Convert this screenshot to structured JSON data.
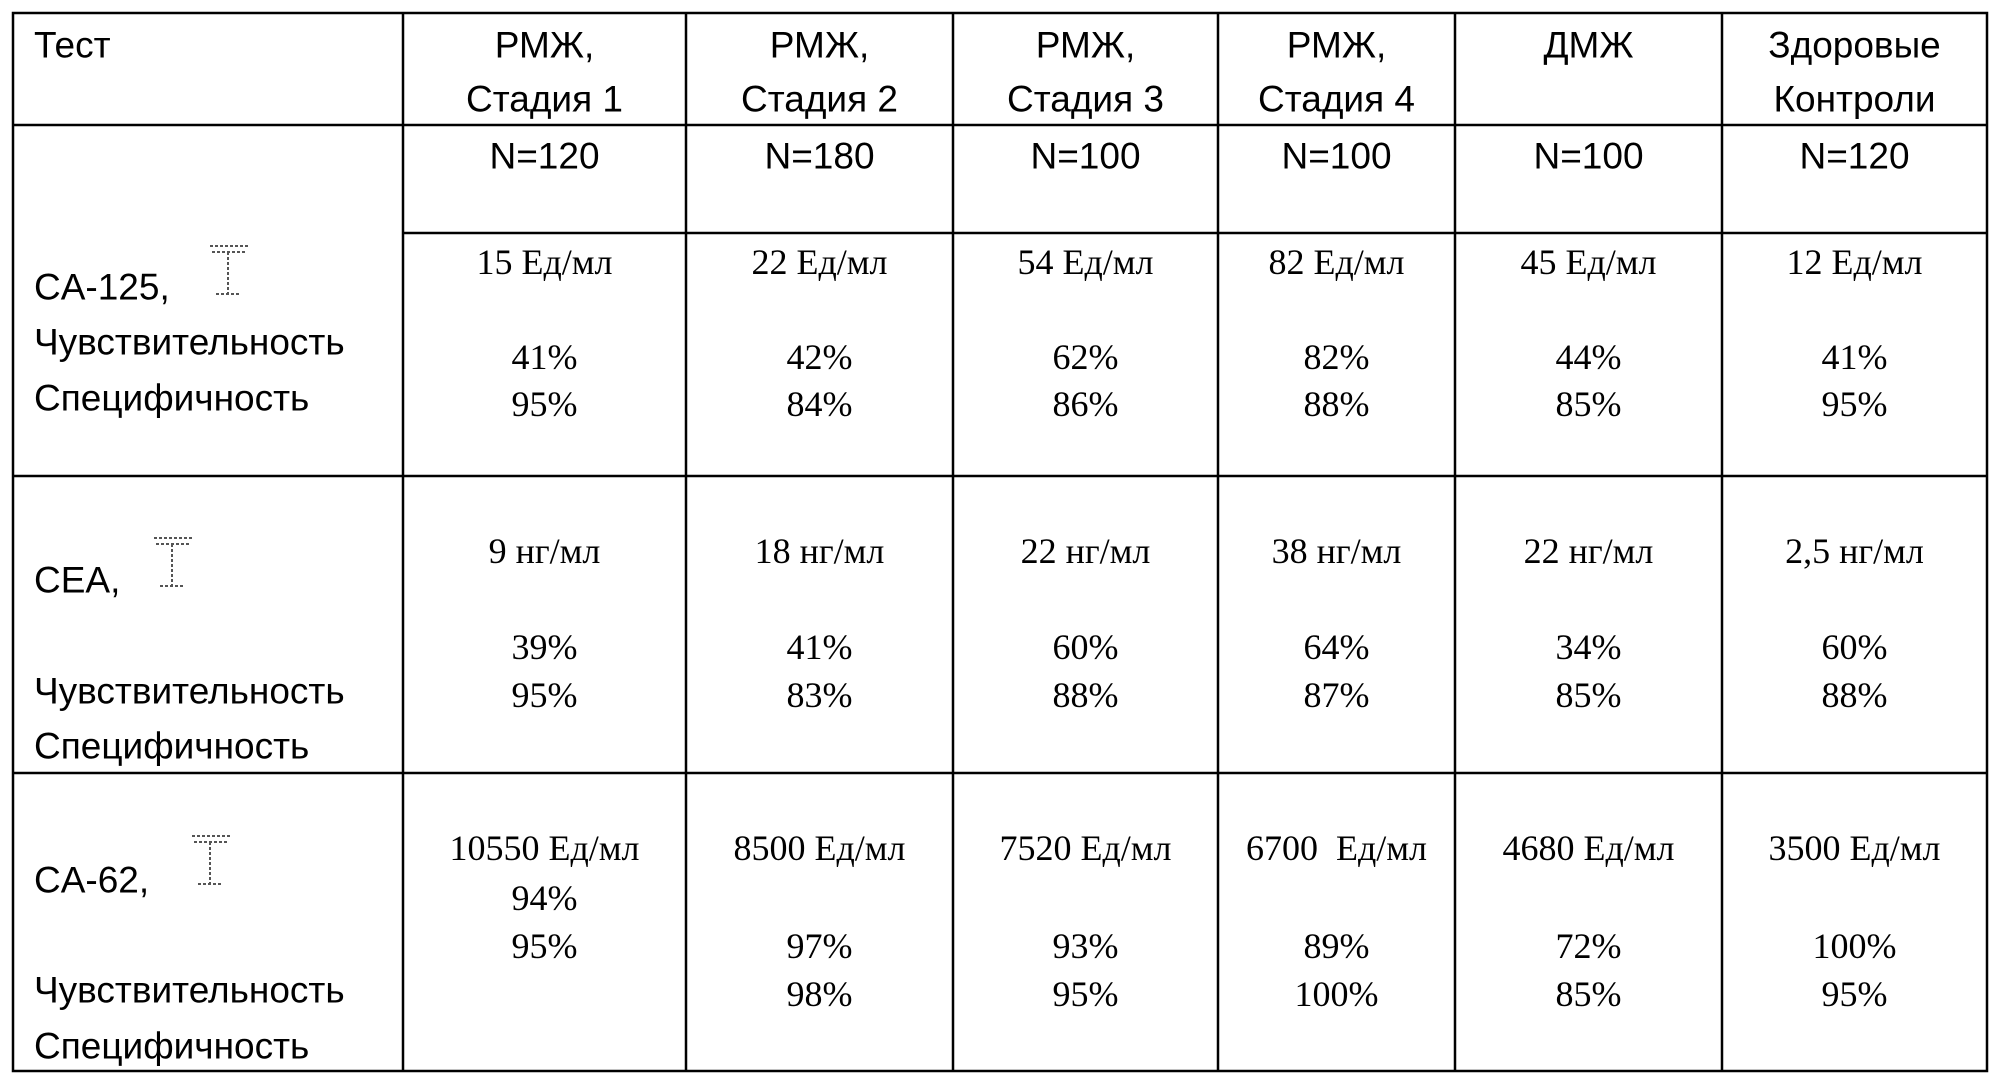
{
  "table": {
    "header": [
      [
        "Тест"
      ],
      [
        "РМЖ,",
        "Стадия 1"
      ],
      [
        "РМЖ,",
        "Стадия 2"
      ],
      [
        "РМЖ,",
        "Стадия 3"
      ],
      [
        "РМЖ,",
        "Стадия 4"
      ],
      [
        "ДМЖ"
      ],
      [
        "Здоровые",
        "Контроли"
      ]
    ],
    "n_row": [
      "N=120",
      "N=180",
      "N=100",
      "N=100",
      "N=100",
      "N=120"
    ],
    "rows": [
      {
        "test": "CA-125,",
        "sensitivity_label": "Чувствительность",
        "specificity_label": "Специфичность",
        "cells": [
          {
            "value": "15 Ед/мл",
            "sensitivity": "41%",
            "specificity": "95%"
          },
          {
            "value": "22 Ед/мл",
            "sensitivity": "42%",
            "specificity": "84%"
          },
          {
            "value": "54 Ед/мл",
            "sensitivity": "62%",
            "specificity": "86%"
          },
          {
            "value": "82 Ед/мл",
            "sensitivity": "82%",
            "specificity": "88%"
          },
          {
            "value": "45 Ед/мл",
            "sensitivity": "44%",
            "specificity": "85%"
          },
          {
            "value": "12 Ед/мл",
            "sensitivity": "41%",
            "specificity": "95%"
          }
        ]
      },
      {
        "test": "CEA,",
        "sensitivity_label": "Чувствительность",
        "specificity_label": "Специфичность",
        "cells": [
          {
            "value": "9 нг/мл",
            "sensitivity": "39%",
            "specificity": "95%"
          },
          {
            "value": "18 нг/мл",
            "sensitivity": "41%",
            "specificity": "83%"
          },
          {
            "value": "22 нг/мл",
            "sensitivity": "60%",
            "specificity": "88%"
          },
          {
            "value": "38 нг/мл",
            "sensitivity": "64%",
            "specificity": "87%"
          },
          {
            "value": "22 нг/мл",
            "sensitivity": "34%",
            "specificity": "85%"
          },
          {
            "value": "2,5 нг/мл",
            "sensitivity": "60%",
            "specificity": "88%"
          }
        ]
      },
      {
        "test": "CA-62,",
        "sensitivity_label": "Чувствительность",
        "specificity_label": "Специфичность",
        "cells": [
          {
            "value": "10550 Ед/мл",
            "sensitivity": "94%",
            "specificity": "95%"
          },
          {
            "value": "8500 Ед/мл",
            "sensitivity": "97%",
            "specificity": "98%"
          },
          {
            "value": "7520 Ед/мл",
            "sensitivity": "93%",
            "specificity": "95%"
          },
          {
            "value": "6700  Ед/мл",
            "sensitivity": "89%",
            "specificity": "100%"
          },
          {
            "value": "4680 Ед/мл",
            "sensitivity": "72%",
            "specificity": "85%"
          },
          {
            "value": "3500 Ед/мл",
            "sensitivity": "100%",
            "specificity": "95%"
          }
        ]
      }
    ]
  }
}
